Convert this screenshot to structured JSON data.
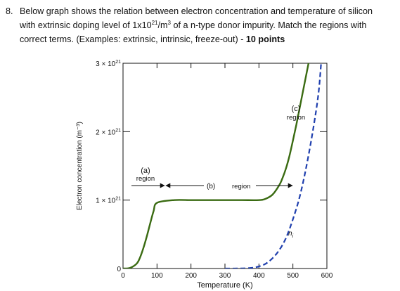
{
  "question": {
    "number": "8.",
    "line1": "Below graph shows the relation between electron concentration and temperature of silicon",
    "line2_prefix": "with extrinsic doping level of 1x10",
    "line2_exp": "21",
    "line2_mid": "/m",
    "line2_exp2": "3",
    "line2_suffix": " of a n-type donor impurity. Match the regions with",
    "line3": "correct terms. (Examples: extrinsic, intrinsic, freeze-out) - ",
    "points": "10 points"
  },
  "chart_data": {
    "type": "line",
    "xlabel": "Temperature (K)",
    "ylabel": "Electron concentration (m⁻³)",
    "xlim": [
      0,
      600
    ],
    "ylim": [
      0,
      3e+21
    ],
    "x_ticks": [
      {
        "value": 0,
        "label": "0"
      },
      {
        "value": 100,
        "label": "100"
      },
      {
        "value": 200,
        "label": "200"
      },
      {
        "value": 300,
        "label": "300"
      },
      {
        "value": 400,
        "label": "400"
      },
      {
        "value": 500,
        "label": "500"
      },
      {
        "value": 600,
        "label": "600"
      }
    ],
    "y_ticks": [
      {
        "value": 0,
        "base": "0",
        "exp": ""
      },
      {
        "value": 1e+21,
        "base": "1 × 10",
        "exp": "21"
      },
      {
        "value": 2e+21,
        "base": "2 × 10",
        "exp": "21"
      },
      {
        "value": 3e+21,
        "base": "3 × 10",
        "exp": "21"
      }
    ],
    "grid": false,
    "series": [
      {
        "style": "solid",
        "color": "#3a6b12",
        "x": [
          0,
          20,
          40,
          50,
          60,
          70,
          80,
          90,
          100,
          150,
          200,
          250,
          300,
          350,
          400,
          420,
          440,
          460,
          470,
          480,
          490,
          500,
          510,
          520,
          530,
          540,
          550
        ],
        "y": [
          0,
          8e+18,
          7e+19,
          1.6e+20,
          3e+20,
          4.7e+20,
          6.6e+20,
          8.4e+20,
          9.6e+20,
          1e+21,
          1e+21,
          1e+21,
          1e+21,
          1e+21,
          1e+21,
          1.02e+21,
          1.08e+21,
          1.22e+21,
          1.33e+21,
          1.47e+21,
          1.65e+21,
          1.87e+21,
          2.1e+21,
          2.35e+21,
          2.6e+21,
          2.85e+21,
          3.1e+21
        ]
      },
      {
        "name": "n",
        "name_sub": "i",
        "style": "dashed",
        "color": "#1f3fae",
        "x": [
          300,
          350,
          380,
          400,
          420,
          440,
          460,
          480,
          500,
          520,
          540,
          560,
          575,
          583
        ],
        "y": [
          0,
          2e+18,
          1e+19,
          3e+19,
          7e+19,
          1.5e+20,
          2.7e+20,
          4.5e+20,
          7.2e+20,
          1.05e+21,
          1.5e+21,
          2.05e+21,
          2.55e+21,
          3e+21
        ]
      }
    ],
    "annotations": {
      "a_letter": "(a)",
      "a_word": "region",
      "b_letter": "(b)",
      "b_word": "region",
      "c_letter": "(c)",
      "c_word": "region"
    }
  }
}
